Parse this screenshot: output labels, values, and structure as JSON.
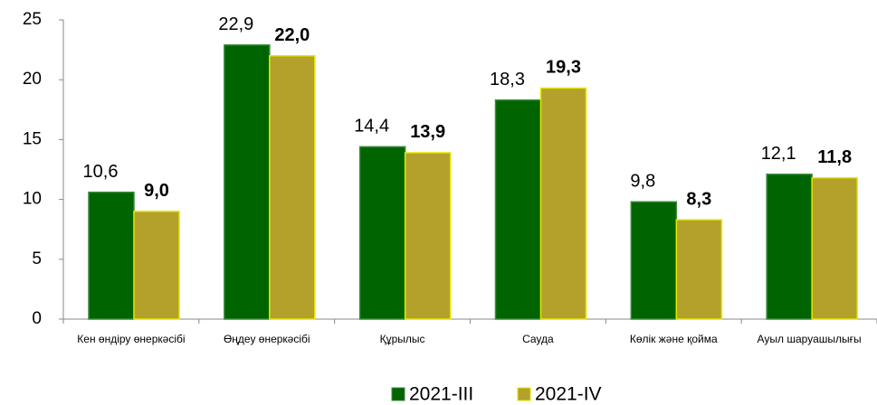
{
  "chart_data": {
    "type": "bar",
    "categories": [
      "Кен өндіру өнеркәсібі",
      "Өңдеу өнеркәсібі",
      "Құрылыс",
      "Сауда",
      "Көлік және қойма",
      "Ауыл шаруашылығы"
    ],
    "series": [
      {
        "name": "2021-III",
        "color": "#006400",
        "values": [
          10.6,
          22.9,
          14.4,
          18.3,
          9.8,
          12.1
        ],
        "value_labels": [
          "10,6",
          "22,9",
          "14,4",
          "18,3",
          "9,8",
          "12,1"
        ]
      },
      {
        "name": "2021-IV",
        "color": "#b3a12c",
        "values": [
          9.0,
          22.0,
          13.9,
          19.3,
          8.3,
          11.8
        ],
        "value_labels": [
          "9,0",
          "22,0",
          "13,9",
          "19,3",
          "8,3",
          "11,8"
        ]
      }
    ],
    "ylim": [
      0,
      25
    ],
    "yticks": [
      0,
      5,
      10,
      15,
      20,
      25
    ],
    "grid": false,
    "legend": "bottom"
  }
}
